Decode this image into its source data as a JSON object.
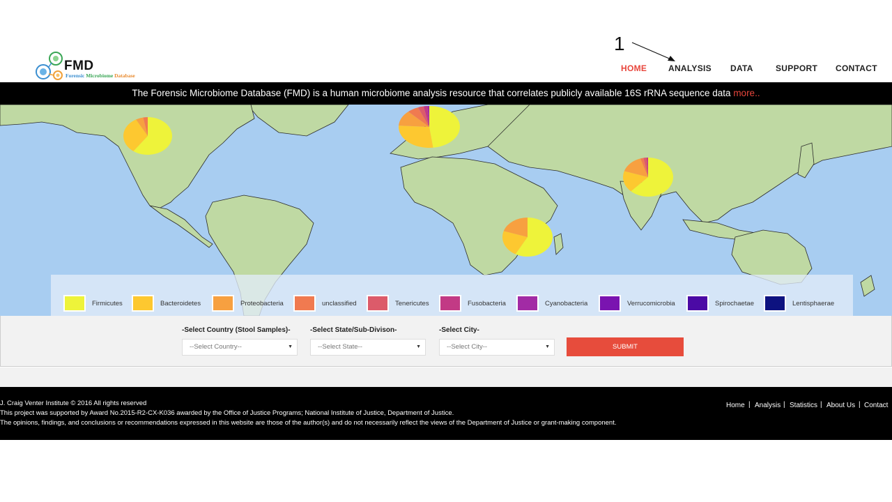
{
  "annotation": {
    "label": "1"
  },
  "logo": {
    "title": "FMD",
    "subtitle_part1": "Forensic",
    "subtitle_part2": "Microbiome",
    "subtitle_part3": "Database"
  },
  "nav": {
    "items": [
      {
        "label": "HOME",
        "active": true
      },
      {
        "label": "ANALYSIS",
        "active": false
      },
      {
        "label": "DATA",
        "active": false
      },
      {
        "label": "SUPPORT",
        "active": false
      },
      {
        "label": "CONTACT",
        "active": false
      }
    ]
  },
  "banner": {
    "text": "The Forensic Microbiome Database (FMD) is a human microbiome analysis resource that correlates publicly available 16S rRNA sequence data ",
    "more_link": "more.."
  },
  "legend": {
    "items": [
      {
        "label": "Firmicutes",
        "color": "#eef33a"
      },
      {
        "label": "Bacteroidetes",
        "color": "#fdc830"
      },
      {
        "label": "Proteobacteria",
        "color": "#f7a040"
      },
      {
        "label": "unclassified",
        "color": "#f07a50"
      },
      {
        "label": "Tenericutes",
        "color": "#dc5b6a"
      },
      {
        "label": "Fusobacteria",
        "color": "#c23a85"
      },
      {
        "label": "Cyanobacteria",
        "color": "#a22ba5"
      },
      {
        "label": "Verrucomicrobia",
        "color": "#7a14b0"
      },
      {
        "label": "Spirochaetae",
        "color": "#4b0aa5"
      },
      {
        "label": "Lentisphaerae",
        "color": "#0d1280"
      }
    ]
  },
  "form": {
    "country_label": "-Select Country (Stool Samples)-",
    "country_value": "--Select Country--",
    "state_label": "-Select State/Sub-Divison-",
    "state_value": "--Select State--",
    "city_label": "-Select City-",
    "city_value": "--Select City--",
    "submit_label": "SUBMIT"
  },
  "footer": {
    "copyright": "J. Craig Venter Institute © 2016 All rights reserved",
    "award": "This project was supported by Award No.2015-R2-CX-K036 awarded by the Office of Justice Programs; National Institute of Justice, Department of Justice.",
    "disclaimer": "The opinions, findings, and conclusions or recommendations expressed in this website are those of the author(s) and do not necessarily reflect the views of the Department of Justice or grant-making component.",
    "links": [
      "Home",
      "Analysis",
      "Statistics",
      "About Us",
      "Contact"
    ]
  },
  "pies": [
    {
      "region": "north-america",
      "slices": [
        0.6,
        0.32,
        0.05,
        0.03
      ]
    },
    {
      "region": "europe",
      "slices": [
        0.48,
        0.28,
        0.12,
        0.06,
        0.03,
        0.02,
        0.01
      ]
    },
    {
      "region": "africa",
      "slices": [
        0.58,
        0.22,
        0.2
      ]
    },
    {
      "region": "asia",
      "slices": [
        0.62,
        0.18,
        0.15,
        0.02,
        0.02,
        0.01
      ]
    }
  ]
}
